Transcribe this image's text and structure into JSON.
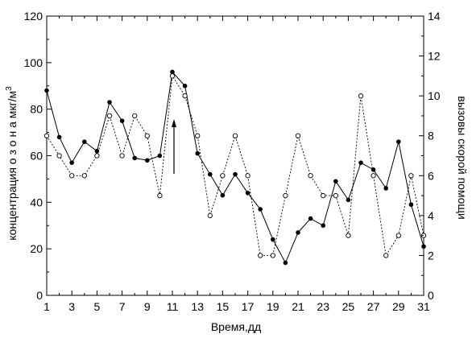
{
  "chart_data": {
    "type": "line",
    "xlabel": "Время,дд",
    "ylabel": "концентрация о з о н а мкг/м",
    "ylabel_superscript": "3",
    "y2label": "вызовы скорой помощи",
    "x": [
      1,
      2,
      3,
      4,
      5,
      6,
      7,
      8,
      9,
      10,
      11,
      12,
      13,
      14,
      15,
      16,
      17,
      18,
      19,
      20,
      21,
      22,
      23,
      24,
      25,
      26,
      27,
      28,
      29,
      30,
      31
    ],
    "xlim": [
      1,
      31
    ],
    "xticks": [
      1,
      3,
      5,
      7,
      9,
      11,
      13,
      15,
      17,
      19,
      21,
      23,
      25,
      27,
      29,
      31
    ],
    "ylim": [
      0,
      120
    ],
    "yticks": [
      0,
      20,
      40,
      60,
      80,
      100,
      120
    ],
    "y2lim": [
      0,
      14
    ],
    "y2ticks": [
      0,
      2,
      4,
      6,
      8,
      10,
      12,
      14
    ],
    "grid": false,
    "series": [
      {
        "axis": "left",
        "style": "solid",
        "marker": "filled-circle",
        "color": "#000000",
        "values": [
          88,
          68,
          57,
          66,
          62,
          83,
          75,
          59,
          58,
          60,
          96,
          90,
          61,
          52,
          43,
          52,
          44,
          37,
          24,
          14,
          27,
          33,
          30,
          49,
          41,
          57,
          54,
          46,
          66,
          39,
          21
        ]
      },
      {
        "axis": "right",
        "style": "dotted",
        "marker": "open-circle",
        "color": "#000000",
        "values": [
          8,
          7,
          6,
          6,
          7,
          9,
          7,
          9,
          8,
          5,
          11,
          10,
          8,
          4,
          6,
          8,
          6,
          2,
          2,
          5,
          8,
          6,
          5,
          5,
          3,
          10,
          6,
          2,
          3,
          6,
          3
        ]
      }
    ],
    "annotations": [
      {
        "type": "arrow",
        "direction": "up",
        "x": 11
      }
    ]
  }
}
